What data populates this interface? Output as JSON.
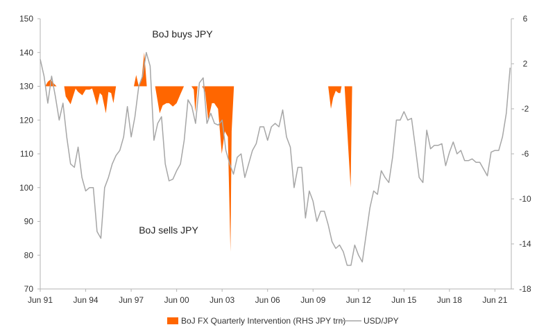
{
  "chart_data": {
    "type": "line+area",
    "title": "",
    "colors": {
      "intervention": "#ff6600",
      "usdjpy": "#a6a6a6",
      "axis": "#b3b3b3",
      "text": "#333333"
    },
    "x_axis": {
      "ticks": [
        {
          "year": 1991.42,
          "label": "Jun 91"
        },
        {
          "year": 1994.42,
          "label": "Jun 94"
        },
        {
          "year": 1997.42,
          "label": "Jun 97"
        },
        {
          "year": 2000.42,
          "label": "Jun 00"
        },
        {
          "year": 2003.42,
          "label": "Jun 03"
        },
        {
          "year": 2006.42,
          "label": "Jun 06"
        },
        {
          "year": 2009.42,
          "label": "Jun 09"
        },
        {
          "year": 2012.42,
          "label": "Jun 12"
        },
        {
          "year": 2015.42,
          "label": "Jun 15"
        },
        {
          "year": 2018.42,
          "label": "Jun 18"
        },
        {
          "year": 2021.42,
          "label": "Jun 21"
        }
      ],
      "range": [
        1991.42,
        2022.5
      ]
    },
    "y_left": {
      "ylim": [
        70,
        150
      ],
      "ticks": [
        70,
        80,
        90,
        100,
        110,
        120,
        130,
        140,
        150
      ]
    },
    "y_right": {
      "ylim": [
        -18,
        6
      ],
      "ticks": [
        -18,
        -14,
        -10,
        -6,
        -2,
        2,
        6
      ]
    },
    "annotations": {
      "buys": "BoJ buys JPY",
      "sells": "BoJ sells JPY"
    },
    "legend": {
      "intervention": "BoJ FX Quarterly Intervention (RHS JPY trn)",
      "usdjpy": "USD/JPY"
    },
    "series": [
      {
        "name": "USD/JPY",
        "axis": "left",
        "points": [
          [
            1991.42,
            138
          ],
          [
            1991.67,
            133
          ],
          [
            1991.92,
            125
          ],
          [
            1992.17,
            133
          ],
          [
            1992.42,
            127
          ],
          [
            1992.67,
            120
          ],
          [
            1992.92,
            125
          ],
          [
            1993.17,
            115
          ],
          [
            1993.42,
            107
          ],
          [
            1993.67,
            106
          ],
          [
            1993.92,
            112
          ],
          [
            1994.17,
            103
          ],
          [
            1994.42,
            99
          ],
          [
            1994.67,
            100
          ],
          [
            1994.92,
            100
          ],
          [
            1995.17,
            87
          ],
          [
            1995.42,
            85
          ],
          [
            1995.67,
            100
          ],
          [
            1995.92,
            103
          ],
          [
            1996.17,
            107
          ],
          [
            1996.42,
            109.5
          ],
          [
            1996.67,
            111
          ],
          [
            1996.92,
            115
          ],
          [
            1997.17,
            124
          ],
          [
            1997.42,
            115
          ],
          [
            1997.67,
            121
          ],
          [
            1997.92,
            130
          ],
          [
            1998.17,
            133
          ],
          [
            1998.42,
            140
          ],
          [
            1998.67,
            136
          ],
          [
            1998.92,
            114
          ],
          [
            1999.17,
            119
          ],
          [
            1999.42,
            121
          ],
          [
            1999.67,
            107
          ],
          [
            1999.92,
            102
          ],
          [
            2000.17,
            102.5
          ],
          [
            2000.42,
            105
          ],
          [
            2000.67,
            107
          ],
          [
            2000.92,
            114
          ],
          [
            2001.17,
            126
          ],
          [
            2001.42,
            124
          ],
          [
            2001.67,
            119
          ],
          [
            2001.92,
            131
          ],
          [
            2002.17,
            132.5
          ],
          [
            2002.42,
            119
          ],
          [
            2002.67,
            122
          ],
          [
            2002.92,
            119
          ],
          [
            2003.17,
            118.5
          ],
          [
            2003.42,
            120
          ],
          [
            2003.67,
            111
          ],
          [
            2003.92,
            107
          ],
          [
            2004.17,
            104
          ],
          [
            2004.42,
            109
          ],
          [
            2004.67,
            110
          ],
          [
            2004.92,
            103
          ],
          [
            2005.17,
            107
          ],
          [
            2005.42,
            111
          ],
          [
            2005.67,
            113
          ],
          [
            2005.92,
            118
          ],
          [
            2006.17,
            118
          ],
          [
            2006.42,
            114
          ],
          [
            2006.67,
            118
          ],
          [
            2006.92,
            119
          ],
          [
            2007.17,
            118
          ],
          [
            2007.42,
            123
          ],
          [
            2007.67,
            115
          ],
          [
            2007.92,
            112
          ],
          [
            2008.17,
            100
          ],
          [
            2008.42,
            106
          ],
          [
            2008.67,
            106
          ],
          [
            2008.92,
            91
          ],
          [
            2009.17,
            99
          ],
          [
            2009.42,
            96
          ],
          [
            2009.67,
            90
          ],
          [
            2009.92,
            93
          ],
          [
            2010.17,
            93
          ],
          [
            2010.42,
            89
          ],
          [
            2010.67,
            84
          ],
          [
            2010.92,
            82
          ],
          [
            2011.17,
            83
          ],
          [
            2011.42,
            81
          ],
          [
            2011.67,
            77
          ],
          [
            2011.92,
            77
          ],
          [
            2012.17,
            83
          ],
          [
            2012.42,
            80
          ],
          [
            2012.67,
            78
          ],
          [
            2012.92,
            86
          ],
          [
            2013.17,
            94
          ],
          [
            2013.42,
            99
          ],
          [
            2013.67,
            98
          ],
          [
            2013.92,
            105
          ],
          [
            2014.17,
            103
          ],
          [
            2014.42,
            101.5
          ],
          [
            2014.67,
            109
          ],
          [
            2014.92,
            120
          ],
          [
            2015.17,
            120
          ],
          [
            2015.42,
            122.5
          ],
          [
            2015.67,
            120
          ],
          [
            2015.92,
            120.5
          ],
          [
            2016.17,
            112
          ],
          [
            2016.42,
            103
          ],
          [
            2016.67,
            101.5
          ],
          [
            2016.92,
            117
          ],
          [
            2017.17,
            111.5
          ],
          [
            2017.42,
            112.5
          ],
          [
            2017.67,
            112.5
          ],
          [
            2017.92,
            113
          ],
          [
            2018.17,
            106.5
          ],
          [
            2018.42,
            110.5
          ],
          [
            2018.67,
            113.5
          ],
          [
            2018.92,
            110
          ],
          [
            2019.17,
            111
          ],
          [
            2019.42,
            108
          ],
          [
            2019.67,
            108
          ],
          [
            2019.92,
            108.5
          ],
          [
            2020.17,
            107.5
          ],
          [
            2020.42,
            107.5
          ],
          [
            2020.67,
            105.5
          ],
          [
            2020.92,
            103.5
          ],
          [
            2021.17,
            110.5
          ],
          [
            2021.42,
            111
          ],
          [
            2021.67,
            111
          ],
          [
            2021.92,
            115
          ],
          [
            2022.17,
            122
          ],
          [
            2022.42,
            135.5
          ]
        ]
      },
      {
        "name": "BoJ FX Quarterly Intervention",
        "axis": "right",
        "baseline": 0,
        "points": [
          [
            1991.42,
            0
          ],
          [
            1991.75,
            0
          ],
          [
            1991.92,
            0.4
          ],
          [
            1992.1,
            0.6
          ],
          [
            1992.27,
            0.3
          ],
          [
            1992.5,
            0
          ],
          [
            1992.75,
            0
          ],
          [
            1993.0,
            0
          ],
          [
            1993.1,
            -0.9
          ],
          [
            1993.42,
            -1.6
          ],
          [
            1993.75,
            -0.2
          ],
          [
            1993.92,
            -0.5
          ],
          [
            1994.2,
            -0.8
          ],
          [
            1994.42,
            -0.3
          ],
          [
            1994.67,
            -0.3
          ],
          [
            1994.85,
            -0.2
          ],
          [
            1995.0,
            -0.9
          ],
          [
            1995.17,
            -1.7
          ],
          [
            1995.35,
            -0.6
          ],
          [
            1995.5,
            -0.8
          ],
          [
            1995.75,
            -2.4
          ],
          [
            1995.92,
            -0.5
          ],
          [
            1996.1,
            -0.6
          ],
          [
            1996.25,
            -1.5
          ],
          [
            1996.42,
            0
          ],
          [
            1997.42,
            0
          ],
          [
            1997.6,
            0
          ],
          [
            1997.75,
            1
          ],
          [
            1997.92,
            0
          ],
          [
            1998.1,
            0.5
          ],
          [
            1998.28,
            3
          ],
          [
            1998.45,
            0
          ],
          [
            1998.7,
            0
          ],
          [
            1999.0,
            0
          ],
          [
            1999.3,
            -2.4
          ],
          [
            1999.5,
            -1.7
          ],
          [
            1999.75,
            -1.5
          ],
          [
            1999.92,
            -1.5
          ],
          [
            2000.17,
            -1.8
          ],
          [
            2000.42,
            -1.5
          ],
          [
            2000.67,
            -0.7
          ],
          [
            2000.9,
            0
          ],
          [
            2001.25,
            0
          ],
          [
            2001.4,
            0
          ],
          [
            2001.55,
            -0.3
          ],
          [
            2001.65,
            -2.3
          ],
          [
            2001.8,
            0
          ],
          [
            2002.1,
            0
          ],
          [
            2002.3,
            -0.5
          ],
          [
            2002.5,
            -3
          ],
          [
            2002.75,
            -1.5
          ],
          [
            2002.9,
            -1.5
          ],
          [
            2003.15,
            -2
          ],
          [
            2003.4,
            -6
          ],
          [
            2003.6,
            -4
          ],
          [
            2003.8,
            -4.5
          ],
          [
            2003.97,
            -14.7
          ],
          [
            2004.05,
            -4
          ],
          [
            2004.2,
            0
          ],
          [
            2010.42,
            0
          ],
          [
            2010.6,
            -2
          ],
          [
            2010.75,
            -1
          ],
          [
            2010.92,
            -0.4
          ],
          [
            2011.1,
            -0.6
          ],
          [
            2011.22,
            -0.6
          ],
          [
            2011.3,
            0
          ],
          [
            2011.5,
            0
          ],
          [
            2011.9,
            -9
          ],
          [
            2012.0,
            0
          ]
        ]
      }
    ]
  }
}
